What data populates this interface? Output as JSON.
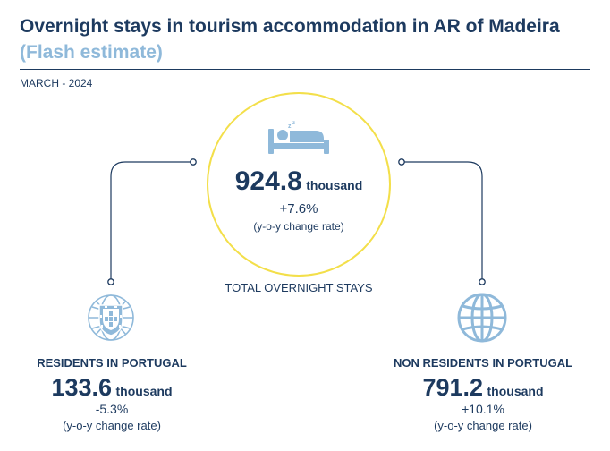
{
  "title": "Overnight stays in tourism accommodation in AR of Madeira",
  "subtitle": "(Flash estimate)",
  "date": "MARCH - 2024",
  "total": {
    "value": "924.8",
    "unit": "thousand",
    "change": "+7.6%",
    "note": "(y-o-y change rate)",
    "label": "TOTAL OVERNIGHT STAYS",
    "icon": "bed-icon"
  },
  "residents": {
    "label": "RESIDENTS IN PORTUGAL",
    "value": "133.6",
    "unit": "thousand",
    "change": "-5.3%",
    "note": "(y-o-y change rate)",
    "icon": "portugal-coat-of-arms-icon"
  },
  "non_residents": {
    "label": "NON RESIDENTS IN PORTUGAL",
    "value": "791.2",
    "unit": "thousand",
    "change": "+10.1%",
    "note": "(y-o-y change rate)",
    "icon": "globe-icon"
  },
  "colors": {
    "navy": "#1d3a5f",
    "light_blue": "#8fb9da",
    "yellow": "#f3df4a"
  }
}
